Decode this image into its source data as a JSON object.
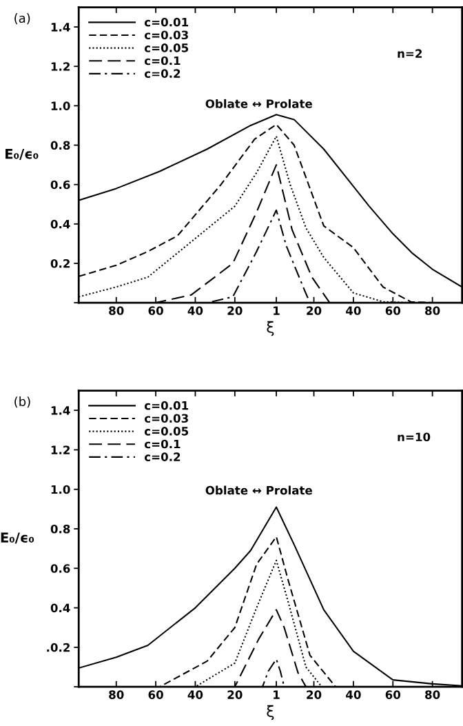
{
  "chart_data": [
    {
      "type": "line",
      "title": "(a)",
      "xlabel": "ξ",
      "ylabel": "E₀/ϵ₀",
      "annotations": [
        "Oblate ↔ Prolate",
        "n=2"
      ],
      "xlim": [
        -99,
        95
      ],
      "ylim": [
        0,
        1.5
      ],
      "xticks": [
        {
          "value": -80,
          "label": "80"
        },
        {
          "value": -60,
          "label": "60"
        },
        {
          "value": -40,
          "label": "40"
        },
        {
          "value": -20,
          "label": "20"
        },
        1,
        20,
        40,
        60,
        80
      ],
      "yticks": [
        {
          "value": 0,
          "label": null
        },
        0.2,
        0.4,
        0.6,
        0.8,
        {
          "value": 1.0,
          "label": "1.0"
        },
        1.2,
        1.4
      ],
      "legend": "top left",
      "grid": false,
      "marker": "none",
      "series": [
        {
          "name": "c=0.01",
          "color": "#000000",
          "line_style": "solid",
          "x": [
            -99,
            -80,
            -58,
            -34,
            -12,
            1,
            10,
            25,
            48,
            60,
            70,
            80,
            95
          ],
          "values": [
            0.52,
            0.58,
            0.667,
            0.78,
            0.9,
            0.955,
            0.93,
            0.78,
            0.49,
            0.35,
            0.25,
            0.17,
            0.08
          ]
        },
        {
          "name": "c=0.03",
          "color": "#000000",
          "line_style": "dashed",
          "x": [
            -99,
            -80,
            -64,
            -49,
            -27,
            -10,
            1,
            10,
            25,
            40,
            55,
            69,
            80,
            95
          ],
          "values": [
            0.134,
            0.19,
            0.26,
            0.34,
            0.6,
            0.83,
            0.905,
            0.8,
            0.39,
            0.28,
            0.08,
            0.005,
            0,
            0
          ]
        },
        {
          "name": "c=0.05",
          "color": "#000000",
          "line_style": "dotted",
          "x": [
            -99,
            -80,
            -64,
            -42,
            -20,
            -9,
            1,
            8,
            16,
            25,
            40,
            55,
            70,
            95
          ],
          "values": [
            0.03,
            0.08,
            0.13,
            0.31,
            0.49,
            0.66,
            0.845,
            0.6,
            0.38,
            0.23,
            0.05,
            0.005,
            0,
            0
          ]
        },
        {
          "name": "c=0.1",
          "color": "#000000",
          "line_style": "longdashed",
          "x": [
            -99,
            -60,
            -42,
            -21,
            -9,
            1,
            9,
            19,
            28,
            95
          ],
          "values": [
            0,
            0,
            0.04,
            0.2,
            0.46,
            0.7,
            0.37,
            0.13,
            0,
            0
          ]
        },
        {
          "name": "c=0.2",
          "color": "#000000",
          "line_style": "dashdot",
          "x": [
            -99,
            -34,
            -21,
            -9,
            1,
            6,
            15,
            18,
            95
          ],
          "values": [
            0,
            0,
            0.03,
            0.26,
            0.47,
            0.29,
            0.07,
            0,
            0
          ]
        }
      ]
    },
    {
      "type": "line",
      "title": "(b)",
      "xlabel": "ξ",
      "ylabel": "E₀/ϵ₀",
      "annotations": [
        "Oblate ↔ Prolate",
        "n=10"
      ],
      "xlim": [
        -99,
        95
      ],
      "ylim": [
        0,
        1.5
      ],
      "xticks": [
        {
          "value": -80,
          "label": "80"
        },
        {
          "value": -60,
          "label": "60"
        },
        {
          "value": -40,
          "label": "40"
        },
        {
          "value": -20,
          "label": "20"
        },
        1,
        20,
        40,
        60,
        80
      ],
      "yticks": [
        {
          "value": 0,
          "label": null
        },
        {
          "value": 0.2,
          "label": ".0.2"
        },
        0.4,
        0.6,
        0.8,
        {
          "value": 1.0,
          "label": "1.0"
        },
        1.2,
        1.4
      ],
      "legend": "top left",
      "grid": false,
      "marker": "none",
      "series": [
        {
          "name": "c=0.01",
          "color": "#000000",
          "line_style": "solid",
          "x": [
            -99,
            -80,
            -64,
            -40,
            -20,
            -12,
            1,
            10,
            25,
            40,
            60,
            80,
            95
          ],
          "values": [
            0.095,
            0.15,
            0.21,
            0.4,
            0.6,
            0.69,
            0.91,
            0.72,
            0.39,
            0.18,
            0.035,
            0.015,
            0.005
          ]
        },
        {
          "name": "c=0.03",
          "color": "#000000",
          "line_style": "dashed",
          "x": [
            -99,
            -58,
            -34,
            -20,
            -9,
            1,
            7,
            18,
            31,
            95
          ],
          "values": [
            0,
            0,
            0.13,
            0.3,
            0.62,
            0.76,
            0.54,
            0.16,
            0,
            0
          ]
        },
        {
          "name": "c=0.05",
          "color": "#000000",
          "line_style": "dotted",
          "x": [
            -99,
            -40,
            -20,
            -9,
            1,
            7,
            16,
            24,
            95
          ],
          "values": [
            0,
            0,
            0.12,
            0.4,
            0.64,
            0.43,
            0.1,
            0,
            0
          ]
        },
        {
          "name": "c=0.1",
          "color": "#000000",
          "line_style": "longdashed",
          "x": [
            -99,
            -20,
            -8,
            1,
            5,
            12,
            16,
            95
          ],
          "values": [
            0,
            0,
            0.24,
            0.39,
            0.3,
            0.07,
            0,
            0
          ]
        },
        {
          "name": "c=0.2",
          "color": "#000000",
          "line_style": "dashdot",
          "x": [
            -99,
            -6,
            -3,
            1,
            3,
            5,
            95
          ],
          "values": [
            0,
            0,
            0.08,
            0.14,
            0.08,
            0,
            0
          ]
        }
      ]
    }
  ]
}
